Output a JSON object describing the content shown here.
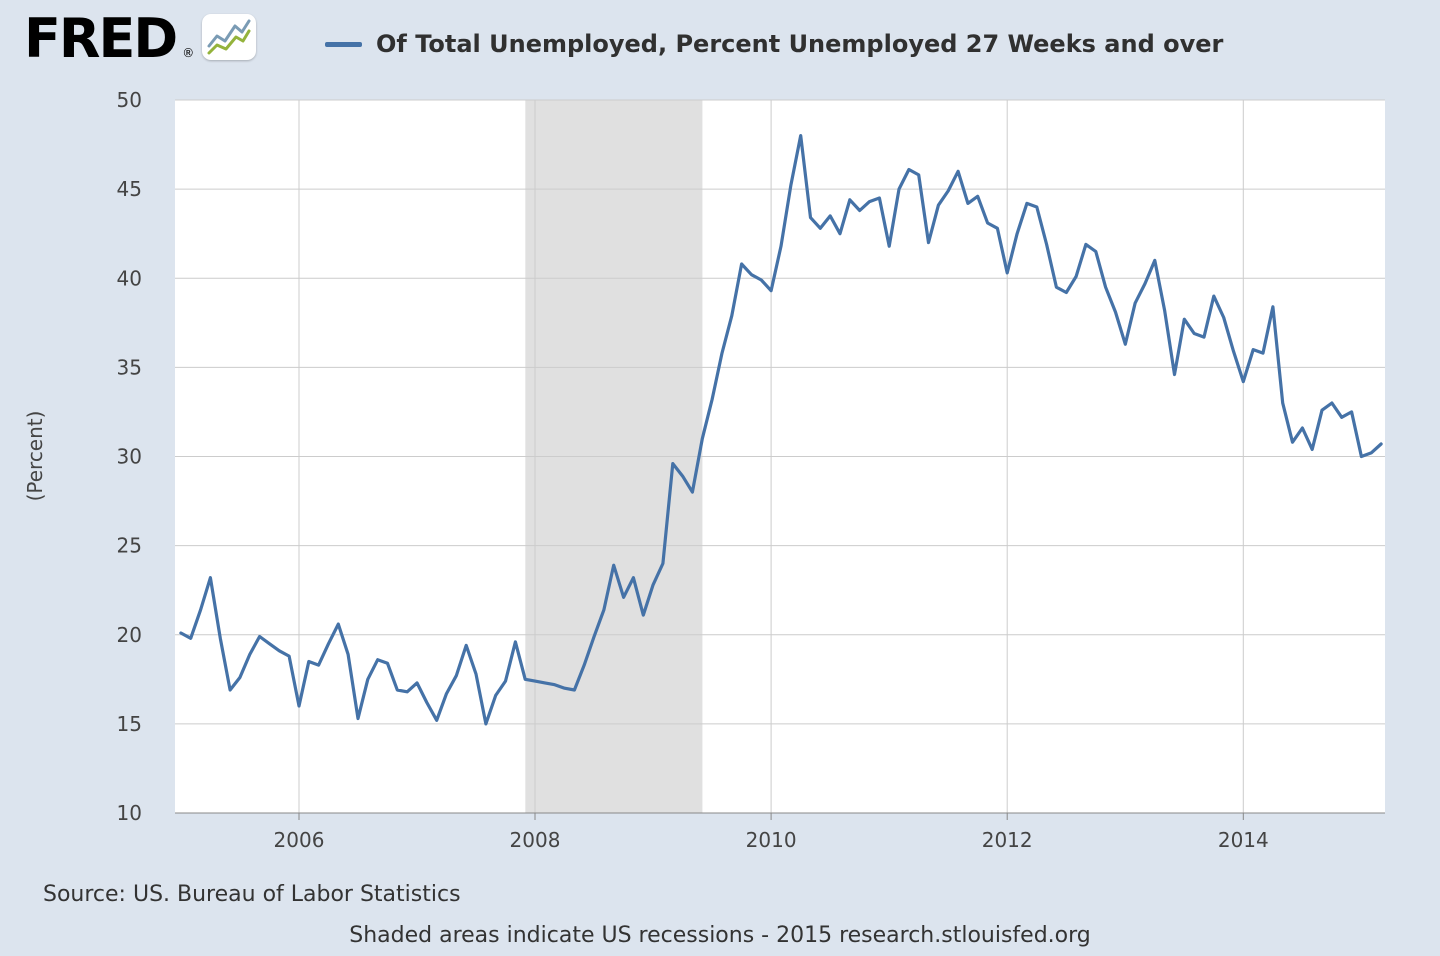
{
  "brand": {
    "name": "FRED",
    "registered": "®"
  },
  "legend": {
    "label": "Of Total Unemployed, Percent Unemployed 27 Weeks and over",
    "swatch_color": "#4572a7"
  },
  "footer": {
    "source": "Source: US. Bureau of Labor Statistics",
    "note": "Shaded areas indicate US recessions - 2015 research.stlouisfed.org"
  },
  "chart_data": {
    "type": "line",
    "title": "Of Total Unemployed, Percent Unemployed 27 Weeks and over",
    "ylabel": "(Percent)",
    "xlabel": "",
    "frequency": "monthly",
    "x_start": "2005-01",
    "x_end": "2015-03",
    "x_numeric_start": 2005,
    "xlim": [
      2004.95,
      2015.2
    ],
    "ylim": [
      10,
      50
    ],
    "yticks": [
      10,
      15,
      20,
      25,
      30,
      35,
      40,
      45,
      50
    ],
    "xticks": [
      2006,
      2008,
      2010,
      2012,
      2014
    ],
    "grid": true,
    "legend_position": "top",
    "colors": {
      "line": "#4572a7",
      "recession_band": "#e0e0e0",
      "grid": "#cccccc",
      "axis": "#888888",
      "background": "#dce4ee",
      "plot_background": "#ffffff",
      "text": "#444444"
    },
    "recessions": [
      {
        "start": 2007.917,
        "end": 2009.417
      }
    ],
    "series": [
      {
        "name": "Of Total Unemployed, Percent Unemployed 27 Weeks and over",
        "values": [
          20.1,
          19.8,
          21.4,
          23.2,
          19.8,
          16.9,
          17.6,
          18.9,
          19.9,
          19.5,
          19.1,
          18.8,
          16.0,
          18.5,
          18.3,
          19.5,
          20.6,
          18.9,
          15.3,
          17.5,
          18.6,
          18.4,
          16.9,
          16.8,
          17.3,
          16.2,
          15.2,
          16.7,
          17.7,
          19.4,
          17.8,
          15.0,
          16.6,
          17.4,
          19.6,
          17.5,
          17.4,
          17.3,
          17.2,
          17.0,
          16.9,
          18.3,
          19.9,
          21.4,
          23.9,
          22.1,
          23.2,
          21.1,
          22.8,
          24.0,
          29.6,
          28.9,
          28.0,
          31.0,
          33.2,
          35.8,
          37.9,
          40.8,
          40.2,
          39.9,
          39.3,
          41.8,
          45.2,
          48.0,
          43.4,
          42.8,
          43.5,
          42.5,
          44.4,
          43.8,
          44.3,
          44.5,
          41.8,
          45.0,
          46.1,
          45.8,
          42.0,
          44.1,
          44.9,
          46.0,
          44.2,
          44.6,
          43.1,
          42.8,
          40.3,
          42.5,
          44.2,
          44.0,
          41.9,
          39.5,
          39.2,
          40.1,
          41.9,
          41.5,
          39.5,
          38.1,
          36.3,
          38.6,
          39.7,
          41.0,
          38.2,
          34.6,
          37.7,
          36.9,
          36.7,
          39.0,
          37.8,
          35.9,
          34.2,
          36.0,
          35.8,
          38.4,
          33.0,
          30.8,
          31.6,
          30.4,
          32.6,
          33.0,
          32.2,
          32.5,
          30.0,
          30.2,
          30.7
        ]
      }
    ]
  }
}
